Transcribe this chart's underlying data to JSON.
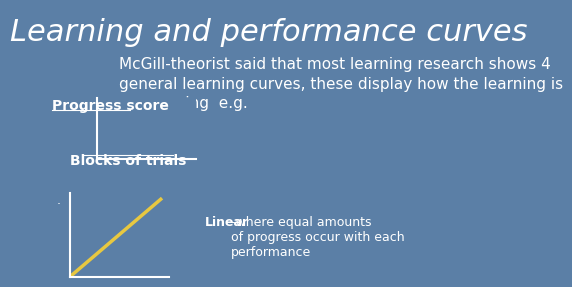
{
  "title": "Learning and performance curves",
  "subtitle": "McGill-theorist said that most learning research shows 4\ngeneral learning curves, these display how the learning is\nprogressing  e.g.",
  "title_fontsize": 22,
  "subtitle_fontsize": 11,
  "background_color": "#5b7fa6",
  "text_color": "white",
  "axes_color": "white",
  "linear_color": "#e8c840",
  "label_progress": "Progress score",
  "label_blocks": "Blocks of trials",
  "linear_label_bold": "Linear",
  "linear_label_rest": "-where equal amounts\nof progress occur with each\nperformance",
  "linear_fontsize": 9,
  "axis_label_fontsize": 10,
  "dot_text": "."
}
